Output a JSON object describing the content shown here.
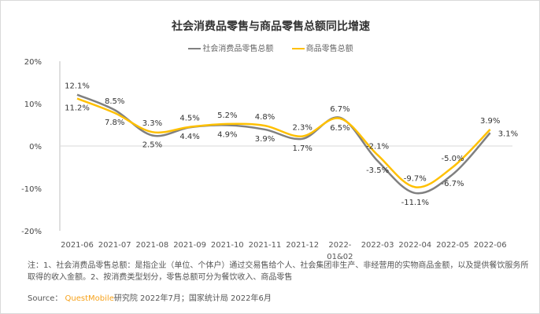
{
  "chart_data": {
    "type": "line",
    "title": "社会消费品零售与商品零售总额同比增速",
    "categories": [
      "2021-06",
      "2021-07",
      "2021-08",
      "2021-09",
      "2021-10",
      "2021-11",
      "2021-12",
      "2022-01&02",
      "2022-03",
      "2022-04",
      "2022-05",
      "2022-06"
    ],
    "series": [
      {
        "name": "社会消费品零售总额",
        "color": "#808080",
        "values": [
          12.1,
          8.5,
          2.5,
          4.4,
          4.9,
          3.9,
          1.7,
          6.7,
          -3.5,
          -11.1,
          -6.7,
          3.1
        ],
        "labels": [
          "12.1%",
          "8.5%",
          "2.5%",
          "4.4%",
          "4.9%",
          "3.9%",
          "1.7%",
          "6.7%",
          "-3.5%",
          "-11.1%",
          "-6.7%",
          "3.1%"
        ]
      },
      {
        "name": "商品零售总额",
        "color": "#ffc000",
        "values": [
          11.2,
          7.8,
          3.3,
          4.5,
          5.2,
          4.8,
          2.3,
          6.5,
          -2.1,
          -9.7,
          -5.0,
          3.9
        ],
        "labels": [
          "11.2%",
          "7.8%",
          "3.3%",
          "4.5%",
          "5.2%",
          "4.8%",
          "2.3%",
          "6.5%",
          "-2.1%",
          "-9.7%",
          "-5.0%",
          "3.9%"
        ]
      }
    ],
    "ylim": [
      -20,
      20
    ],
    "yticks": [
      "20%",
      "10%",
      "0%",
      "-10%",
      "-20%"
    ],
    "grid": false,
    "legend": "top-center",
    "smooth": true
  },
  "note": "注：1、社会消费品零售总额：是指企业（单位、个体户）通过交易售给个人、社会集团非生产、非经营用的实物商品金额，以及提供餐饮服务所取得的收入金额。2、按消费类型划分，零售总额可分为餐饮收入、商品零售",
  "source": {
    "label": "Source：",
    "brand": "QuestMobile",
    "rest": "研究院 2022年7月；国家统计局 2022年6月"
  }
}
